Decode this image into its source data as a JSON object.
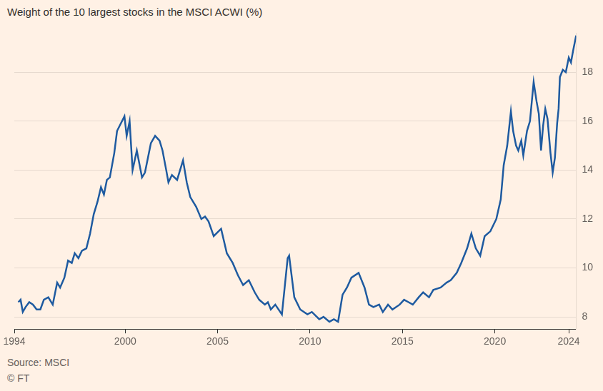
{
  "chart_data": {
    "type": "line",
    "title": "Weight of the 10 largest stocks in the MSCI ACWI (%)",
    "source": "Source: MSCI",
    "credit": "© FT",
    "color": "#1e5aa0",
    "grid": true,
    "xlim": [
      1994,
      2024.4
    ],
    "xticks": [
      1994,
      2000,
      2005,
      2010,
      2015,
      2020,
      2024
    ],
    "ylim": [
      7.5,
      19.6
    ],
    "yticks": [
      8,
      10,
      12,
      14,
      16,
      18
    ],
    "x": [
      1994.22,
      1994.34,
      1994.46,
      1994.61,
      1994.81,
      1995.01,
      1995.21,
      1995.41,
      1995.6,
      1995.84,
      1996.08,
      1996.32,
      1996.48,
      1996.71,
      1996.91,
      1997.11,
      1997.27,
      1997.47,
      1997.66,
      1997.9,
      1998.1,
      1998.3,
      1998.5,
      1998.69,
      1998.85,
      1999.01,
      1999.17,
      1999.41,
      1999.56,
      1999.76,
      1999.96,
      2000.08,
      2000.24,
      2000.4,
      2000.63,
      2000.91,
      2001.07,
      2001.23,
      2001.39,
      2001.62,
      2001.86,
      2002.02,
      2002.22,
      2002.34,
      2002.53,
      2002.81,
      2002.97,
      2003.13,
      2003.33,
      2003.52,
      2003.84,
      2004.12,
      2004.32,
      2004.51,
      2004.79,
      2005.19,
      2005.5,
      2005.82,
      2006.1,
      2006.38,
      2006.69,
      2007.01,
      2007.25,
      2007.56,
      2007.72,
      2007.88,
      2008.12,
      2008.48,
      2008.79,
      2008.87,
      2009.15,
      2009.47,
      2009.86,
      2010.1,
      2010.5,
      2010.73,
      2011.05,
      2011.29,
      2011.52,
      2011.76,
      2012.0,
      2012.24,
      2012.63,
      2012.95,
      2013.19,
      2013.43,
      2013.74,
      2013.94,
      2014.22,
      2014.46,
      2014.85,
      2015.09,
      2015.33,
      2015.56,
      2015.88,
      2016.12,
      2016.44,
      2016.67,
      2017.07,
      2017.39,
      2017.62,
      2017.94,
      2018.18,
      2018.5,
      2018.73,
      2018.97,
      2019.21,
      2019.45,
      2019.76,
      2020.08,
      2020.32,
      2020.48,
      2020.67,
      2020.87,
      2020.99,
      2021.15,
      2021.27,
      2021.43,
      2021.54,
      2021.74,
      2021.9,
      2022.1,
      2022.26,
      2022.38,
      2022.5,
      2022.61,
      2022.73,
      2022.85,
      2023.01,
      2023.13,
      2023.25,
      2023.37,
      2023.45,
      2023.52,
      2023.68,
      2023.84,
      2024.0,
      2024.12,
      2024.24,
      2024.4
    ],
    "values": [
      8.6,
      8.7,
      8.2,
      8.4,
      8.6,
      8.5,
      8.3,
      8.3,
      8.7,
      8.8,
      8.5,
      9.4,
      9.2,
      9.6,
      10.3,
      10.2,
      10.6,
      10.4,
      10.7,
      10.8,
      11.4,
      12.2,
      12.7,
      13.3,
      13.0,
      13.6,
      13.7,
      14.7,
      15.6,
      15.9,
      16.2,
      15.4,
      16.0,
      14.0,
      14.8,
      13.7,
      13.9,
      14.5,
      15.1,
      15.4,
      15.2,
      14.8,
      14.0,
      13.5,
      13.8,
      13.6,
      14.0,
      14.4,
      13.5,
      12.9,
      12.5,
      12.0,
      12.1,
      11.9,
      11.3,
      11.6,
      10.6,
      10.2,
      9.7,
      9.3,
      9.5,
      9.0,
      8.7,
      8.5,
      8.6,
      8.3,
      8.5,
      8.1,
      10.4,
      10.5,
      8.8,
      8.3,
      8.1,
      8.2,
      7.9,
      8.0,
      7.8,
      7.9,
      7.8,
      8.9,
      9.2,
      9.6,
      9.8,
      9.2,
      8.5,
      8.4,
      8.5,
      8.2,
      8.5,
      8.3,
      8.5,
      8.7,
      8.6,
      8.5,
      8.8,
      9.0,
      8.8,
      9.1,
      9.2,
      9.4,
      9.5,
      9.8,
      10.2,
      10.8,
      11.4,
      10.8,
      10.5,
      11.3,
      11.5,
      12.0,
      12.8,
      14.2,
      15.0,
      16.4,
      15.6,
      15.0,
      14.8,
      15.2,
      14.6,
      15.6,
      16.0,
      17.6,
      16.8,
      16.3,
      14.8,
      15.8,
      16.5,
      16.1,
      14.7,
      13.9,
      14.5,
      15.9,
      16.5,
      17.8,
      18.1,
      18.0,
      18.6,
      18.4,
      18.9,
      19.5
    ]
  }
}
